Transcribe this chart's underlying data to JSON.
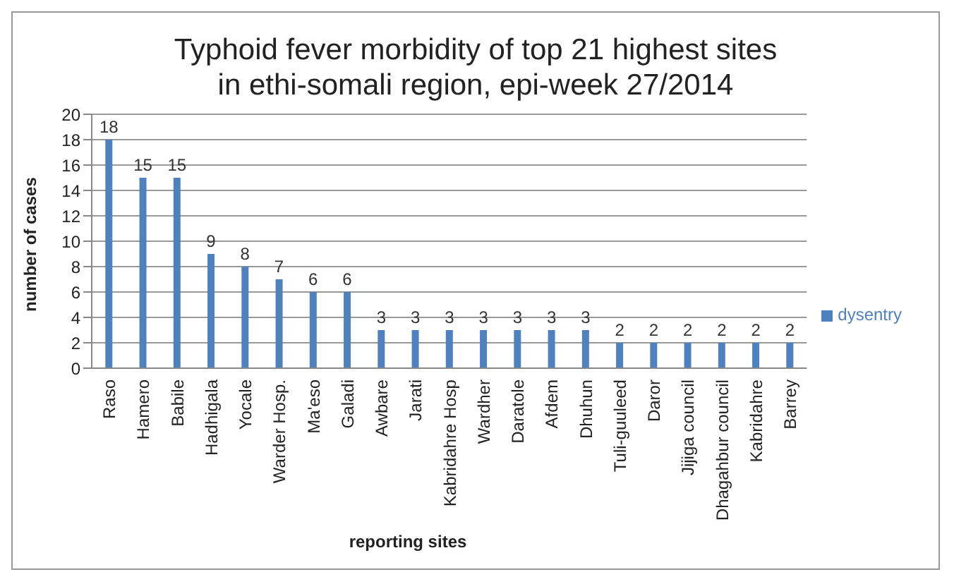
{
  "chart_data": {
    "type": "bar",
    "title": "Typhoid fever morbidity of top 21 highest sites in ethi-somali region, epi-week 27/2014",
    "xlabel": "reporting sites",
    "ylabel": "number of cases",
    "categories": [
      "Raso",
      "Hamero",
      "Babile",
      "Hadhigala",
      "Yocale",
      "Warder Hosp.",
      "Ma'eso",
      "Galadi",
      "Awbare",
      "Jarati",
      "Kabridahre Hosp",
      "Wardher",
      "Daratole",
      "Afdem",
      "Dhuhun",
      "Tuli-guuleed",
      "Daror",
      "Jijiga council",
      "Dhagahbur council",
      "Kabridahre",
      "Barrey"
    ],
    "series": [
      {
        "name": "dysentry",
        "color": "#4f81bd",
        "values": [
          18,
          15,
          15,
          9,
          8,
          7,
          6,
          6,
          3,
          3,
          3,
          3,
          3,
          3,
          3,
          2,
          2,
          2,
          2,
          2,
          2
        ]
      }
    ],
    "ylim": [
      0,
      20
    ],
    "yticks": [
      0,
      2,
      4,
      6,
      8,
      10,
      12,
      14,
      16,
      18,
      20
    ],
    "grid": "y",
    "legend": "right",
    "data_labels": true
  }
}
